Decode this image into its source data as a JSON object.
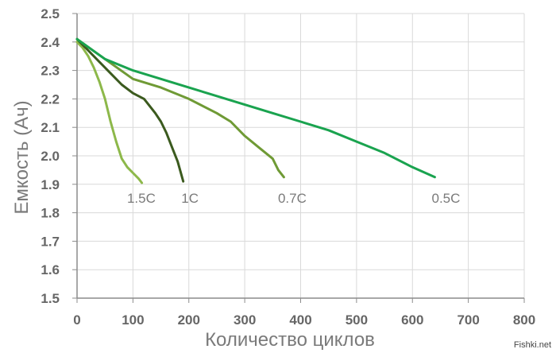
{
  "chart_data": {
    "type": "line",
    "title": "",
    "xlabel": "Количество циклов",
    "ylabel": "Емкость (Ач)",
    "xlim": [
      0,
      800
    ],
    "ylim": [
      1.5,
      2.5
    ],
    "x_ticks": [
      "0",
      "100",
      "200",
      "300",
      "400",
      "500",
      "600",
      "700",
      "800"
    ],
    "y_ticks": [
      "1.5",
      "1.6",
      "1.7",
      "1.8",
      "1.9",
      "2.0",
      "2.1",
      "2.2",
      "2.3",
      "2.4",
      "2.5"
    ],
    "grid": true,
    "series": [
      {
        "name": "1.5C",
        "color": "#8db84a",
        "x": [
          0,
          10,
          20,
          30,
          40,
          50,
          60,
          70,
          80,
          90,
          100,
          110,
          116
        ],
        "y": [
          2.4,
          2.38,
          2.35,
          2.31,
          2.26,
          2.2,
          2.12,
          2.05,
          1.99,
          1.96,
          1.94,
          1.92,
          1.905
        ]
      },
      {
        "name": "1C",
        "color": "#3b5a1e",
        "x": [
          0,
          20,
          40,
          60,
          80,
          100,
          120,
          140,
          150,
          160,
          170,
          180,
          190
        ],
        "y": [
          2.41,
          2.37,
          2.33,
          2.29,
          2.25,
          2.22,
          2.2,
          2.15,
          2.12,
          2.08,
          2.03,
          1.98,
          1.91
        ]
      },
      {
        "name": "0.7C",
        "color": "#6f9a35",
        "x": [
          0,
          50,
          100,
          150,
          200,
          250,
          275,
          300,
          325,
          350,
          360,
          370
        ],
        "y": [
          2.41,
          2.34,
          2.27,
          2.24,
          2.2,
          2.15,
          2.12,
          2.07,
          2.03,
          1.99,
          1.95,
          1.925
        ]
      },
      {
        "name": "0.5C",
        "color": "#1aa34f",
        "x": [
          0,
          50,
          100,
          150,
          200,
          250,
          300,
          350,
          400,
          450,
          500,
          550,
          600,
          640
        ],
        "y": [
          2.41,
          2.34,
          2.3,
          2.27,
          2.24,
          2.21,
          2.18,
          2.15,
          2.12,
          2.09,
          2.05,
          2.01,
          1.96,
          1.925
        ]
      }
    ],
    "series_labels": [
      {
        "text": "1.5C",
        "x": 115,
        "y": 1.835
      },
      {
        "text": "1C",
        "x": 202,
        "y": 1.835
      },
      {
        "text": "0.7C",
        "x": 385,
        "y": 1.835
      },
      {
        "text": "0.5C",
        "x": 660,
        "y": 1.835
      }
    ]
  },
  "watermark": "Fishki.net"
}
